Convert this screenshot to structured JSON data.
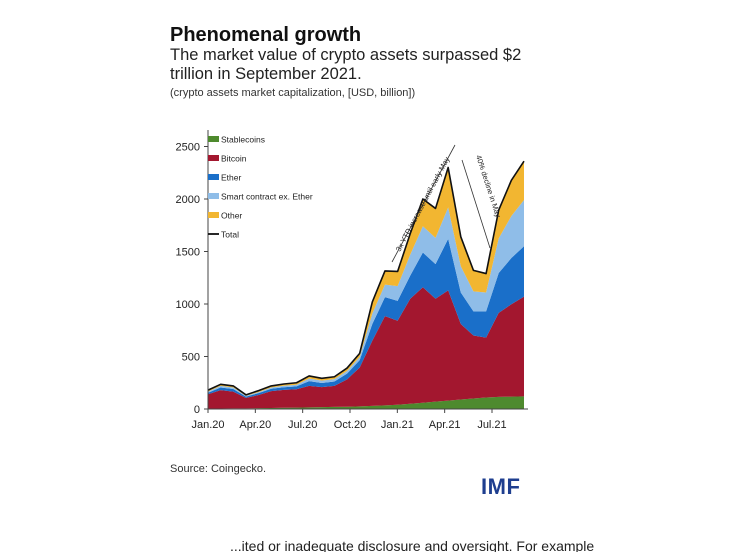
{
  "header": {
    "title": "Phenomenal growth",
    "subtitle": "The market value of crypto assets surpassed $2 trillion in September 2021.",
    "units": "(crypto assets market capitalization, [USD, billion])"
  },
  "source": "Source: Coingecko.",
  "logo_text": "IMF",
  "footer_text": "...ited or inadequate disclosure and oversight. For example",
  "colors": {
    "Stablecoins": "#4e8a2e",
    "Bitcoin": "#a3172f",
    "Ether": "#1a6fc9",
    "Smart contract ex. Ether": "#8fbde8",
    "Other": "#f2b631",
    "Total": "#111111",
    "logo": "#1e3e8f"
  },
  "chart_data": {
    "type": "area",
    "stacked": true,
    "title": "",
    "xlabel": "",
    "ylabel": "",
    "ylim": [
      0,
      2600
    ],
    "yticks": [
      0,
      500,
      1000,
      1500,
      2000,
      2500
    ],
    "xticks": [
      "Jan.20",
      "Apr.20",
      "Jul.20",
      "Oct.20",
      "Jan.21",
      "Apr.21",
      "Jul.21"
    ],
    "x": [
      "Jan.20",
      "Feb.20",
      "Mar.20 early",
      "Mar.20 mid",
      "Apr.20",
      "May.20",
      "Jun.20",
      "Jul.20",
      "Aug.20",
      "Sep.20",
      "Oct.20",
      "Nov.20",
      "Dec.20",
      "Jan.21",
      "Feb.21 early",
      "Feb.21 late",
      "Mar.21",
      "Apr.21",
      "Apr.21 late",
      "May.21 early",
      "May.21 late",
      "Jun.21",
      "Jul.21",
      "Aug.21",
      "Sep.21 early",
      "Sep.21 mid"
    ],
    "series": [
      {
        "name": "Stablecoins",
        "values": [
          5,
          5,
          6,
          6,
          8,
          10,
          12,
          13,
          15,
          18,
          20,
          22,
          25,
          30,
          35,
          40,
          50,
          60,
          70,
          80,
          90,
          100,
          110,
          115,
          118,
          120
        ]
      },
      {
        "name": "Bitcoin",
        "values": [
          135,
          175,
          160,
          100,
          125,
          160,
          170,
          175,
          205,
          190,
          200,
          260,
          370,
          620,
          850,
          800,
          1000,
          1100,
          980,
          1050,
          720,
          600,
          570,
          800,
          880,
          950
        ]
      },
      {
        "name": "Ether",
        "values": [
          15,
          25,
          25,
          12,
          18,
          23,
          25,
          28,
          45,
          40,
          42,
          55,
          70,
          160,
          180,
          190,
          220,
          330,
          330,
          490,
          300,
          230,
          250,
          380,
          440,
          480
        ]
      },
      {
        "name": "Smart contract ex. Ether",
        "values": [
          10,
          15,
          14,
          7,
          10,
          12,
          14,
          15,
          25,
          22,
          23,
          25,
          30,
          100,
          120,
          140,
          200,
          250,
          250,
          300,
          250,
          190,
          180,
          330,
          400,
          440
        ]
      },
      {
        "name": "Other",
        "values": [
          15,
          15,
          15,
          10,
          14,
          15,
          17,
          19,
          25,
          22,
          22,
          28,
          35,
          110,
          130,
          140,
          200,
          260,
          280,
          380,
          280,
          200,
          180,
          270,
          340,
          370
        ]
      },
      {
        "name": "Total",
        "values": [
          180,
          235,
          220,
          135,
          175,
          220,
          238,
          250,
          315,
          292,
          307,
          390,
          530,
          1020,
          1315,
          1310,
          1670,
          2000,
          1910,
          2300,
          1640,
          1320,
          1290,
          1895,
          2178,
          2360
        ]
      }
    ],
    "legend": [
      "Stablecoins",
      "Bitcoin",
      "Ether",
      "Smart contract ex. Ether",
      "Other",
      "Total"
    ],
    "legend_position": "top-left",
    "annotations": [
      "3x YTD increase until early May",
      "40% decline in May"
    ]
  }
}
